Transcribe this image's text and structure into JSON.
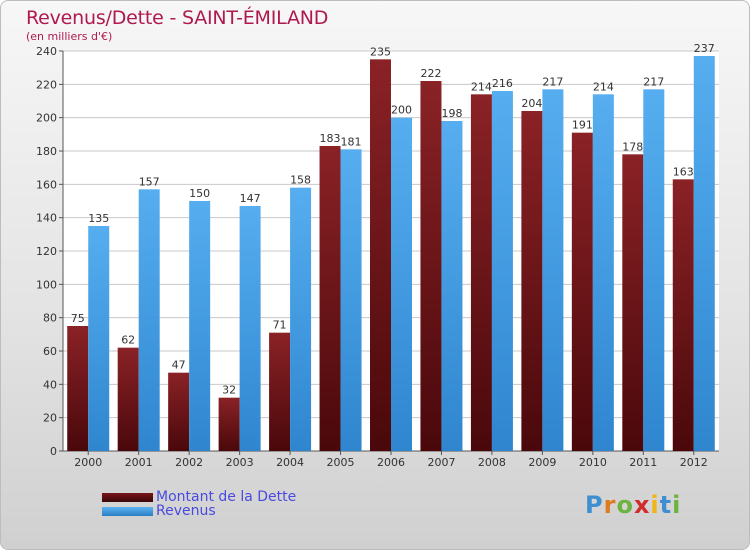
{
  "chart_data": {
    "type": "bar",
    "title": "Revenus/Dette - SAINT-ÉMILAND",
    "subtitle": "(en milliers d'€)",
    "categories": [
      "2000",
      "2001",
      "2002",
      "2003",
      "2004",
      "2005",
      "2006",
      "2007",
      "2008",
      "2009",
      "2010",
      "2011",
      "2012"
    ],
    "series": [
      {
        "name": "Montant de la Dette",
        "color": "#7a1518",
        "values": [
          75,
          62,
          47,
          32,
          71,
          183,
          235,
          222,
          214,
          204,
          191,
          178,
          163
        ]
      },
      {
        "name": "Revenus",
        "color": "#3d9be0",
        "values": [
          135,
          157,
          150,
          147,
          158,
          181,
          200,
          198,
          216,
          217,
          214,
          217,
          237
        ]
      }
    ],
    "ylim": [
      0,
      240
    ],
    "yticks": [
      0,
      20,
      40,
      60,
      80,
      100,
      120,
      140,
      160,
      180,
      200,
      220,
      240
    ],
    "xlabel": "",
    "ylabel": "",
    "grid": true,
    "legend_position": "bottom-left"
  },
  "logo": {
    "letters": [
      "P",
      "r",
      "o",
      "x",
      "i",
      "t",
      "i"
    ],
    "colors": [
      "#3d8fd1",
      "#e07a1f",
      "#6db33f",
      "#d12c2c",
      "#f2b416",
      "#3d8fd1",
      "#6db33f"
    ]
  }
}
